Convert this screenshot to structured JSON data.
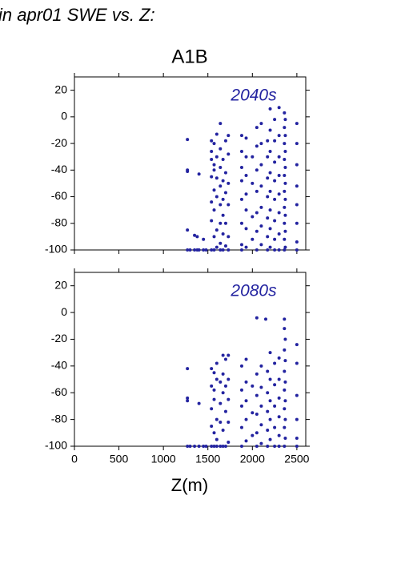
{
  "header": {
    "title": "in apr01 SWE vs. Z:",
    "subtitle": "A1B"
  },
  "chart_data": [
    {
      "type": "scatter",
      "annotation": "2040s",
      "color": "#2323a0",
      "xlim": [
        0,
        2600
      ],
      "ylim": [
        -100,
        30
      ],
      "yticks": [
        20,
        0,
        -20,
        -40,
        -60,
        -80,
        -100
      ],
      "x": [
        1270,
        1270,
        1270,
        1270,
        1270,
        1300,
        1350,
        1350,
        1380,
        1380,
        1400,
        1400,
        1450,
        1450,
        1480,
        1540,
        1540,
        1540,
        1540,
        1540,
        1540,
        1540,
        1570,
        1570,
        1570,
        1570,
        1570,
        1570,
        1570,
        1600,
        1600,
        1600,
        1600,
        1600,
        1600,
        1640,
        1640,
        1640,
        1640,
        1640,
        1640,
        1640,
        1640,
        1670,
        1670,
        1670,
        1670,
        1670,
        1670,
        1700,
        1700,
        1700,
        1700,
        1700,
        1730,
        1730,
        1730,
        1730,
        1730,
        1730,
        1880,
        1880,
        1880,
        1880,
        1880,
        1880,
        1880,
        1880,
        1930,
        1930,
        1930,
        1930,
        1930,
        1930,
        1930,
        2000,
        2000,
        2000,
        2000,
        2050,
        2050,
        2050,
        2050,
        2050,
        2050,
        2050,
        2100,
        2100,
        2100,
        2100,
        2100,
        2100,
        2100,
        2170,
        2170,
        2170,
        2170,
        2170,
        2170,
        2170,
        2200,
        2200,
        2200,
        2200,
        2200,
        2200,
        2200,
        2200,
        2250,
        2250,
        2250,
        2250,
        2250,
        2250,
        2250,
        2250,
        2300,
        2300,
        2300,
        2300,
        2300,
        2300,
        2300,
        2300,
        2360,
        2360,
        2360,
        2360,
        2360,
        2360,
        2360,
        2360,
        2360,
        2360,
        2370,
        2370,
        2370,
        2370,
        2370,
        2370,
        2370,
        2370,
        2370,
        2500,
        2500,
        2500,
        2500,
        2500,
        2500,
        2500,
        2500
      ],
      "values": [
        -17,
        -40,
        -41,
        -85,
        -100,
        -100,
        -89,
        -100,
        -90,
        -100,
        -43,
        -100,
        -92,
        -100,
        -100,
        -18,
        -26,
        -32,
        -45,
        -64,
        -78,
        -100,
        -20,
        -36,
        -40,
        -55,
        -70,
        -90,
        -100,
        -13,
        -30,
        -46,
        -60,
        -85,
        -98,
        -5,
        -24,
        -38,
        -52,
        -66,
        -80,
        -95,
        -100,
        -32,
        -48,
        -62,
        -74,
        -88,
        -100,
        -18,
        -42,
        -57,
        -80,
        -97,
        -14,
        -28,
        -50,
        -66,
        -90,
        -100,
        -14,
        -26,
        -38,
        -48,
        -62,
        -80,
        -96,
        -100,
        -16,
        -30,
        -44,
        -58,
        -70,
        -84,
        -98,
        -30,
        -50,
        -75,
        -92,
        -8,
        -22,
        -40,
        -56,
        -72,
        -86,
        -100,
        -5,
        -20,
        -36,
        -52,
        -68,
        -82,
        -96,
        -18,
        -30,
        -46,
        -60,
        -76,
        -90,
        -100,
        6,
        -10,
        -26,
        -42,
        -56,
        -70,
        -84,
        -98,
        -2,
        -18,
        -34,
        -48,
        -62,
        -78,
        -92,
        -100,
        7,
        -14,
        -30,
        -44,
        -58,
        -72,
        -88,
        -100,
        3,
        -8,
        -20,
        -32,
        -44,
        -56,
        -68,
        -80,
        -92,
        -100,
        -2,
        -14,
        -26,
        -38,
        -50,
        -62,
        -74,
        -86,
        -98,
        -5,
        -20,
        -36,
        -52,
        -66,
        -80,
        -94,
        -100
      ]
    },
    {
      "type": "scatter",
      "annotation": "2080s",
      "color": "#2323a0",
      "x_label": "Z(m)",
      "xlim": [
        0,
        2600
      ],
      "ylim": [
        -100,
        30
      ],
      "xticks": [
        0,
        500,
        1000,
        1500,
        2000,
        2500
      ],
      "yticks": [
        20,
        0,
        -20,
        -40,
        -60,
        -80,
        -100
      ],
      "x": [
        1270,
        1270,
        1270,
        1270,
        1300,
        1350,
        1400,
        1400,
        1450,
        1480,
        1540,
        1540,
        1540,
        1540,
        1540,
        1570,
        1570,
        1570,
        1570,
        1570,
        1600,
        1600,
        1600,
        1600,
        1600,
        1640,
        1640,
        1640,
        1640,
        1670,
        1670,
        1670,
        1670,
        1670,
        1700,
        1700,
        1700,
        1700,
        1730,
        1730,
        1730,
        1730,
        1730,
        1880,
        1880,
        1880,
        1880,
        1880,
        1930,
        1930,
        1930,
        1930,
        1930,
        2000,
        2000,
        2000,
        2050,
        2050,
        2050,
        2050,
        2050,
        2050,
        2100,
        2100,
        2100,
        2100,
        2100,
        2150,
        2170,
        2170,
        2170,
        2170,
        2170,
        2200,
        2200,
        2200,
        2200,
        2200,
        2250,
        2250,
        2250,
        2250,
        2250,
        2300,
        2300,
        2300,
        2300,
        2300,
        2300,
        2360,
        2360,
        2360,
        2360,
        2360,
        2360,
        2360,
        2360,
        2370,
        2370,
        2370,
        2370,
        2370,
        2370,
        2500,
        2500,
        2500,
        2500,
        2500,
        2500
      ],
      "values": [
        -42,
        -64,
        -66,
        -100,
        -100,
        -100,
        -68,
        -100,
        -100,
        -100,
        -42,
        -55,
        -72,
        -85,
        -100,
        -45,
        -58,
        -65,
        -90,
        -100,
        -38,
        -50,
        -80,
        -95,
        -100,
        -52,
        -68,
        -82,
        -100,
        -32,
        -46,
        -60,
        -88,
        -100,
        -35,
        -55,
        -74,
        -100,
        -32,
        -50,
        -65,
        -82,
        -97,
        -40,
        -58,
        -70,
        -86,
        -100,
        -35,
        -52,
        -66,
        -80,
        -96,
        -55,
        -75,
        -92,
        -4,
        -46,
        -62,
        -76,
        -90,
        -100,
        -40,
        -56,
        -70,
        -84,
        -98,
        -5,
        -44,
        -60,
        -74,
        -88,
        -100,
        -30,
        -50,
        -66,
        -80,
        -95,
        -38,
        -54,
        -70,
        -86,
        -100,
        -34,
        -50,
        -64,
        -78,
        -92,
        -100,
        -5,
        -12,
        -28,
        -44,
        -58,
        -72,
        -86,
        -100,
        -20,
        -36,
        -52,
        -66,
        -80,
        -94,
        -24,
        -38,
        -62,
        -80,
        -94,
        -100
      ]
    }
  ]
}
